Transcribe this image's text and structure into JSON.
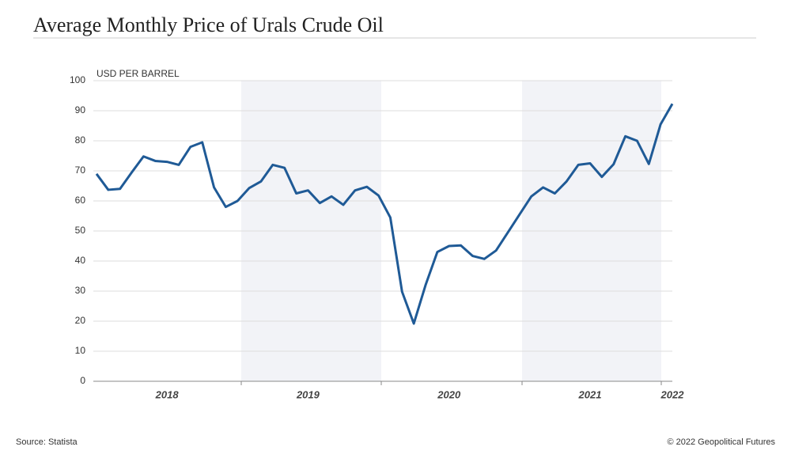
{
  "chart_data": {
    "type": "line",
    "title": "Average Monthly Price of Urals Crude Oil",
    "y_label": "USD PER BARREL",
    "categories": [
      null,
      null,
      null,
      null,
      null,
      null,
      "2018",
      null,
      null,
      null,
      null,
      null,
      null,
      null,
      null,
      null,
      null,
      null,
      "2019",
      null,
      null,
      null,
      null,
      null,
      null,
      null,
      null,
      null,
      null,
      null,
      "2020",
      null,
      null,
      null,
      null,
      null,
      null,
      null,
      null,
      null,
      null,
      null,
      "2021",
      null,
      null,
      null,
      null,
      null,
      null,
      "2022"
    ],
    "series": [
      {
        "name": "Urals",
        "color": "#1f5a96",
        "values": [
          69,
          63.7,
          64,
          69.5,
          74.8,
          73.3,
          73,
          72,
          78,
          79.5,
          64.5,
          58,
          60,
          64.3,
          66.5,
          72,
          71,
          62.5,
          63.5,
          59.3,
          61.5,
          58.7,
          63.5,
          64.7,
          61.8,
          54.5,
          29.8,
          19.2,
          32,
          43,
          45,
          45.2,
          41.7,
          40.7,
          43.5,
          49.5,
          55.5,
          61.5,
          64.5,
          62.5,
          66.5,
          72,
          72.5,
          68,
          72.2,
          81.5,
          80,
          72.3,
          85.5,
          92.3
        ]
      }
    ],
    "ylim": [
      0,
      100
    ],
    "yticks": [
      0,
      10,
      20,
      30,
      40,
      50,
      60,
      70,
      80,
      90,
      100
    ],
    "grid": true,
    "source": "Source: Statista",
    "credit": "© 2022 Geopolitical Futures"
  }
}
